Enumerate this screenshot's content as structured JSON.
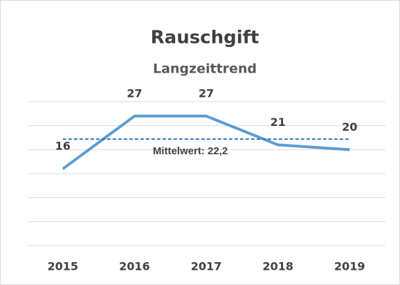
{
  "chart_data": {
    "type": "line",
    "title": "Rauschgift",
    "subtitle": "Langzeittrend",
    "categories": [
      "2015",
      "2016",
      "2017",
      "2018",
      "2019"
    ],
    "series": [
      {
        "name": "Rauschgift",
        "color": "#5b9bd5",
        "values": [
          16,
          27,
          27,
          21,
          20
        ]
      }
    ],
    "ylim": [
      0,
      30
    ],
    "yticks": [
      0,
      5,
      10,
      15,
      20,
      25,
      30
    ],
    "grid": true,
    "mean_line": {
      "value": 22.2,
      "label": "Mittelwert: 22,2",
      "color": "#2e75b6"
    }
  }
}
